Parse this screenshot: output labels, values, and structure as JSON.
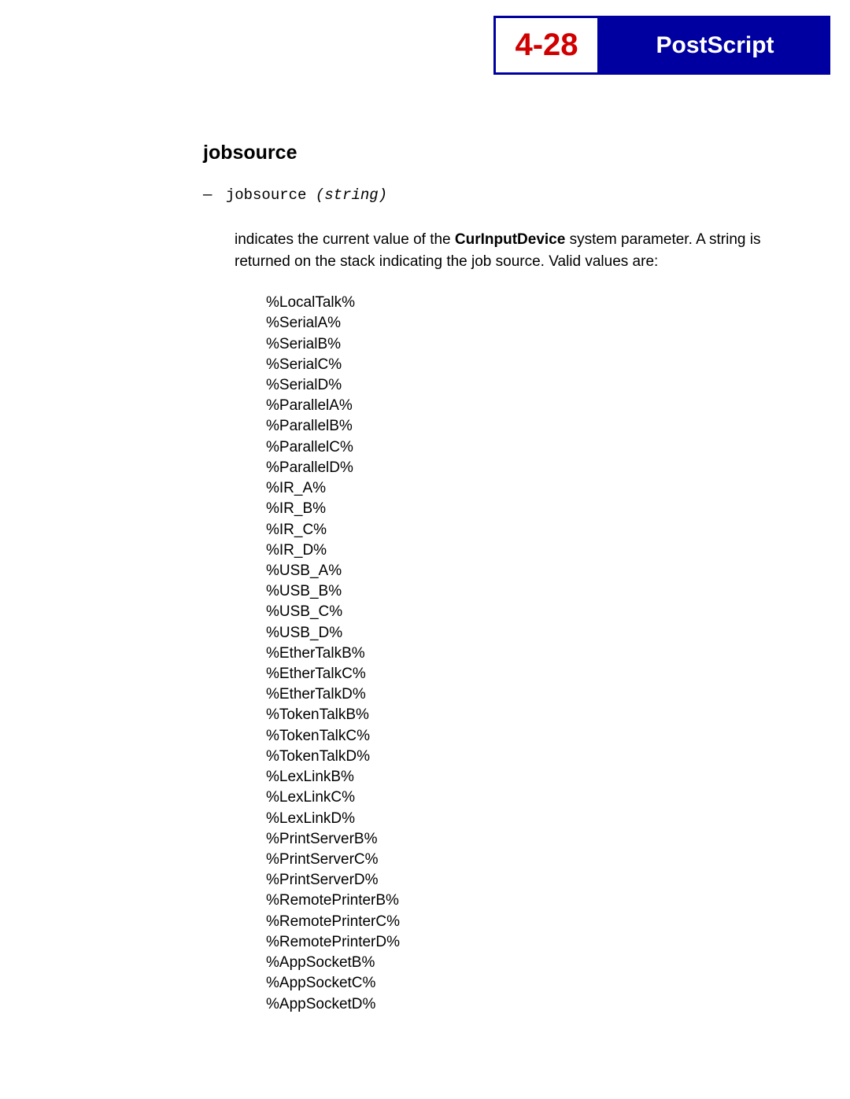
{
  "header": {
    "page_number": "4-28",
    "chapter_title": "PostScript",
    "bg_color": "#0000a0",
    "page_num_color": "#d00000",
    "title_color": "#ffffff"
  },
  "section": {
    "heading": "jobsource",
    "signature_dash": "—",
    "signature_name": "jobsource",
    "signature_return": "(string)"
  },
  "description": {
    "prefix": "indicates the current value of the ",
    "bold_term": "CurInputDevice",
    "suffix": " system parameter. A string is returned on the stack indicating the job source. Valid values are:"
  },
  "values": [
    "%LocalTalk%",
    "%SerialA%",
    "%SerialB%",
    "%SerialC%",
    "%SerialD%",
    "%ParallelA%",
    "%ParallelB%",
    "%ParallelC%",
    "%ParallelD%",
    "%IR_A%",
    "%IR_B%",
    "%IR_C%",
    "%IR_D%",
    "%USB_A%",
    "%USB_B%",
    "%USB_C%",
    "%USB_D%",
    "%EtherTalkB%",
    "%EtherTalkC%",
    "%EtherTalkD%",
    "%TokenTalkB%",
    "%TokenTalkC%",
    "%TokenTalkD%",
    "%LexLinkB%",
    "%LexLinkC%",
    "%LexLinkD%",
    "%PrintServerB%",
    "%PrintServerC%",
    "%PrintServerD%",
    "%RemotePrinterB%",
    "%RemotePrinterC%",
    "%RemotePrinterD%",
    "%AppSocketB%",
    "%AppSocketC%",
    "%AppSocketD%"
  ],
  "style": {
    "body_font_size": 19,
    "heading_font_size": 25,
    "mono_font": "Courier New",
    "text_color": "#000000",
    "background_color": "#ffffff"
  }
}
